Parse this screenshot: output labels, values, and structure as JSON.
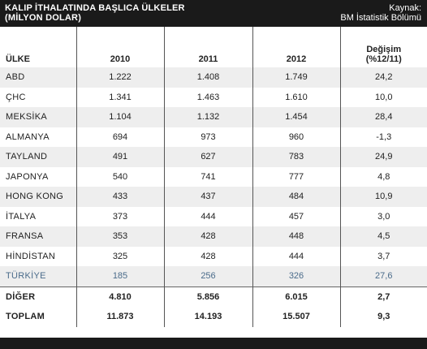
{
  "title_line1": "KALIP İTHALATINDA BAŞLICA ÜLKELER",
  "title_line2": "(MİLYON DOLAR)",
  "source_line1": "Kaynak:",
  "source_line2": "BM İstatistik Bölümü",
  "headers": [
    "ÜLKE",
    "2010",
    "2011",
    "2012",
    "Değişim",
    "(%12/11)"
  ],
  "rows": [
    {
      "country": "ABD",
      "y2010": "1.222",
      "y2011": "1.408",
      "y2012": "1.749",
      "change": "24,2"
    },
    {
      "country": "ÇHC",
      "y2010": "1.341",
      "y2011": "1.463",
      "y2012": "1.610",
      "change": "10,0"
    },
    {
      "country": "MEKSİKA",
      "y2010": "1.104",
      "y2011": "1.132",
      "y2012": "1.454",
      "change": "28,4"
    },
    {
      "country": "ALMANYA",
      "y2010": "694",
      "y2011": "973",
      "y2012": "960",
      "change": "-1,3"
    },
    {
      "country": "TAYLAND",
      "y2010": "491",
      "y2011": "627",
      "y2012": "783",
      "change": "24,9"
    },
    {
      "country": "JAPONYA",
      "y2010": "540",
      "y2011": "741",
      "y2012": "777",
      "change": "4,8"
    },
    {
      "country": "HONG KONG",
      "y2010": "433",
      "y2011": "437",
      "y2012": "484",
      "change": "10,9"
    },
    {
      "country": "İTALYA",
      "y2010": "373",
      "y2011": "444",
      "y2012": "457",
      "change": "3,0"
    },
    {
      "country": "FRANSA",
      "y2010": "353",
      "y2011": "428",
      "y2012": "448",
      "change": "4,5"
    },
    {
      "country": "HİNDİSTAN",
      "y2010": "325",
      "y2011": "428",
      "y2012": "444",
      "change": "3,7"
    },
    {
      "country": "TÜRKİYE",
      "y2010": "185",
      "y2011": "256",
      "y2012": "326",
      "change": "27,6"
    },
    {
      "country": "DİĞER",
      "y2010": "4.810",
      "y2011": "5.856",
      "y2012": "6.015",
      "change": "2,7"
    },
    {
      "country": "TOPLAM",
      "y2010": "11.873",
      "y2011": "14.193",
      "y2012": "15.507",
      "change": "9,3"
    }
  ],
  "colors": {
    "header_bg": "#1a1a1a",
    "shade_row": "#eeeeee",
    "highlight_text": "#4a6b8a"
  }
}
